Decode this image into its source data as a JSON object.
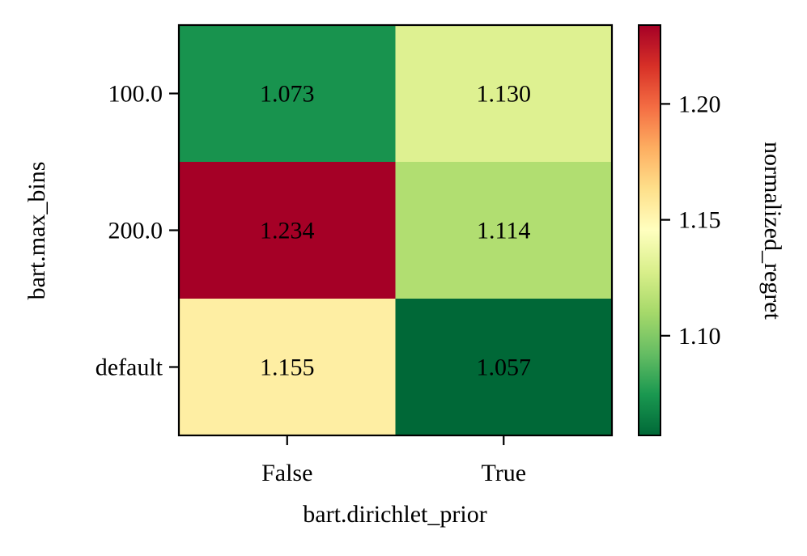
{
  "chart_data": {
    "type": "heatmap",
    "title": "",
    "xlabel": "bart.dirichlet_prior",
    "ylabel": "bart.max_bins",
    "x_categories": [
      "False",
      "True"
    ],
    "y_categories": [
      "100.0",
      "200.0",
      "default"
    ],
    "values": [
      [
        1.073,
        1.13
      ],
      [
        1.234,
        1.114
      ],
      [
        1.155,
        1.057
      ]
    ],
    "value_labels": [
      [
        "1.073",
        "1.130"
      ],
      [
        "1.234",
        "1.114"
      ],
      [
        "1.155",
        "1.057"
      ]
    ],
    "colorbar": {
      "label": "normalized_regret",
      "range": [
        1.057,
        1.234
      ],
      "ticks": [
        1.1,
        1.15,
        1.2
      ],
      "tick_labels": [
        "1.10",
        "1.15",
        "1.20"
      ],
      "colormap": "RdYlGn_r"
    },
    "grid": false
  }
}
